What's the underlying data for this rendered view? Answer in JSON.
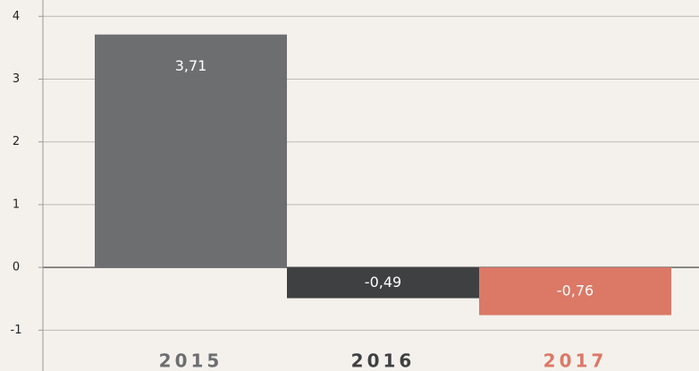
{
  "chart_data": {
    "type": "bar",
    "categories": [
      "2015",
      "2016",
      "2017"
    ],
    "values": [
      3.71,
      -0.49,
      -0.76
    ],
    "value_labels": [
      "3,71",
      "-0,49",
      "-0,76"
    ],
    "colors": [
      "#6d6e70",
      "#3f4042",
      "#dc7866"
    ],
    "category_colors": [
      "#6d6e70",
      "#3f4042",
      "#dc7866"
    ],
    "ylim": [
      -1.65,
      4.26
    ],
    "yticks": [
      -1,
      0,
      1,
      2,
      3,
      4
    ],
    "grid": true
  }
}
